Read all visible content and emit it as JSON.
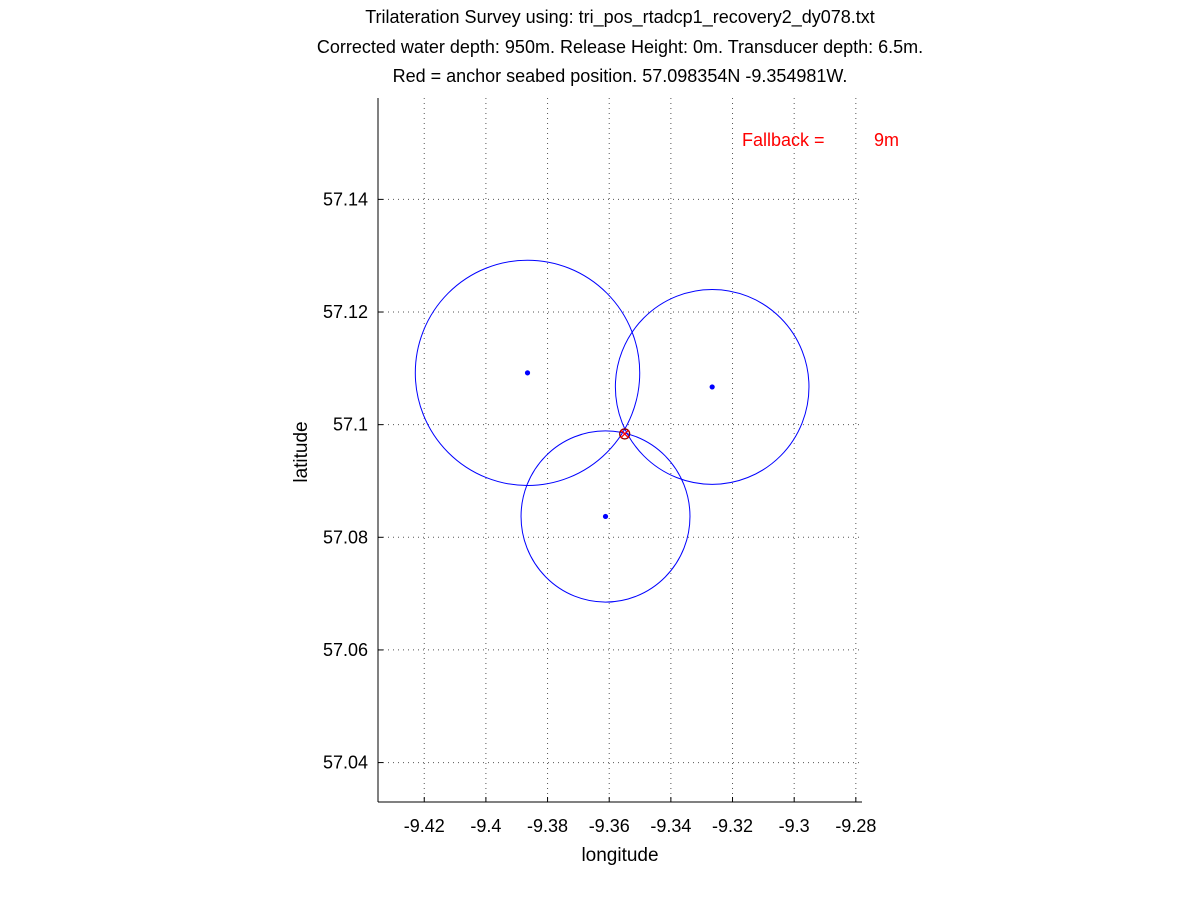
{
  "chart_data": {
    "type": "scatter",
    "title_lines": [
      "Trilateration Survey using: tri_pos_rtadcp1_recovery2_dy078.txt",
      "Corrected water depth: 950m. Release Height: 0m. Transducer depth: 6.5m.",
      "Red = anchor seabed position. 57.098354N -9.354981W."
    ],
    "xlabel": "longitude",
    "ylabel": "latitude",
    "xlim": [
      -9.435,
      -9.278
    ],
    "ylim": [
      57.033,
      57.158
    ],
    "xticks": [
      -9.42,
      -9.4,
      -9.38,
      -9.36,
      -9.34,
      -9.32,
      -9.3,
      -9.28
    ],
    "xtick_labels": [
      "-9.42",
      "-9.4",
      "-9.38",
      "-9.36",
      "-9.34",
      "-9.32",
      "-9.3",
      "-9.28"
    ],
    "yticks": [
      57.04,
      57.06,
      57.08,
      57.1,
      57.12,
      57.14
    ],
    "ytick_labels": [
      "57.04",
      "57.06",
      "57.08",
      "57.1",
      "57.12",
      "57.14"
    ],
    "grid": true,
    "survey_points": [
      {
        "lon": -9.3865,
        "lat": 57.1092
      },
      {
        "lon": -9.3266,
        "lat": 57.1067
      },
      {
        "lon": -9.3612,
        "lat": 57.0837
      }
    ],
    "range_circles": [
      {
        "center_lon": -9.3865,
        "center_lat": 57.1092,
        "radius_lon": 0.0364,
        "radius_lat": 0.02
      },
      {
        "center_lon": -9.3266,
        "center_lat": 57.1067,
        "radius_lon": 0.0314,
        "radius_lat": 0.0173
      },
      {
        "center_lon": -9.3612,
        "center_lat": 57.0837,
        "radius_lon": 0.0274,
        "radius_lat": 0.0152
      }
    ],
    "anchor": {
      "lon": -9.354981,
      "lat": 57.098354
    },
    "fallback": {
      "label": "Fallback =",
      "value": "9m"
    },
    "colors": {
      "circle": "#0000ff",
      "point": "#0000ff",
      "anchor": "#ff0000",
      "anchor_ring": "#8b0000",
      "annotation": "#ff0000"
    }
  }
}
